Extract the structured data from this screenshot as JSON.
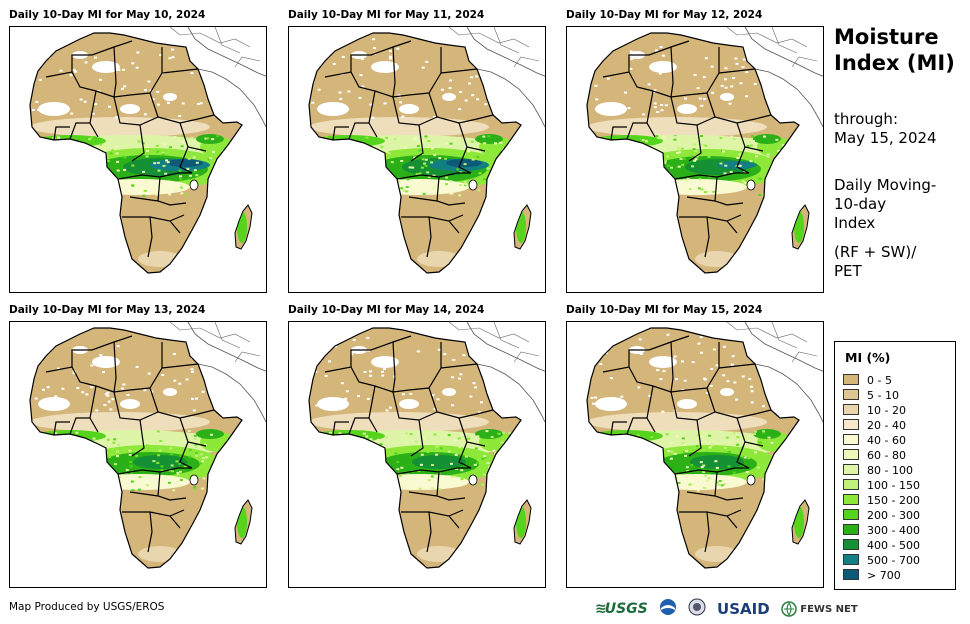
{
  "panels": [
    {
      "title": "Daily 10-Day MI for May 10, 2024",
      "wet_level": 3
    },
    {
      "title": "Daily 10-Day MI for May 11, 2024",
      "wet_level": 3
    },
    {
      "title": "Daily 10-Day MI for May 12, 2024",
      "wet_level": 2
    },
    {
      "title": "Daily 10-Day MI for May 13, 2024",
      "wet_level": 1
    },
    {
      "title": "Daily 10-Day MI for May 14, 2024",
      "wet_level": 1
    },
    {
      "title": "Daily 10-Day MI for May 15, 2024",
      "wet_level": 1
    }
  ],
  "side": {
    "title_line1": "Moisture",
    "title_line2": "Index (MI)",
    "through_label": "through:",
    "through_date": "May 15, 2024",
    "desc_line1": "Daily Moving-",
    "desc_line2": "10-day",
    "desc_line3": "Index",
    "formula_line1": "(RF + SW)/",
    "formula_line2": "PET"
  },
  "legend": {
    "title": "MI (%)",
    "items": [
      {
        "label": "0 - 5",
        "color": "#d4b57a"
      },
      {
        "label": "5 - 10",
        "color": "#dfc592"
      },
      {
        "label": "10 - 20",
        "color": "#ead6ae"
      },
      {
        "label": "20 - 40",
        "color": "#f5e8cc"
      },
      {
        "label": "40 - 60",
        "color": "#fafad2"
      },
      {
        "label": "60 - 80",
        "color": "#f0f7b8"
      },
      {
        "label": "80 - 100",
        "color": "#def5a8"
      },
      {
        "label": "100 - 150",
        "color": "#c2f07c"
      },
      {
        "label": "150 - 200",
        "color": "#8ee83a"
      },
      {
        "label": "200 - 300",
        "color": "#55d41e"
      },
      {
        "label": "300 - 400",
        "color": "#2cb018"
      },
      {
        "label": "400 - 500",
        "color": "#169034"
      },
      {
        "label": "500 - 700",
        "color": "#117f84"
      },
      {
        "label": "> 700",
        "color": "#0d5a78"
      }
    ]
  },
  "footer": {
    "credit": "Map Produced by USGS/EROS",
    "usgs": "USGS",
    "usaid": "USAID",
    "fewsnet": "FEWS NET"
  }
}
